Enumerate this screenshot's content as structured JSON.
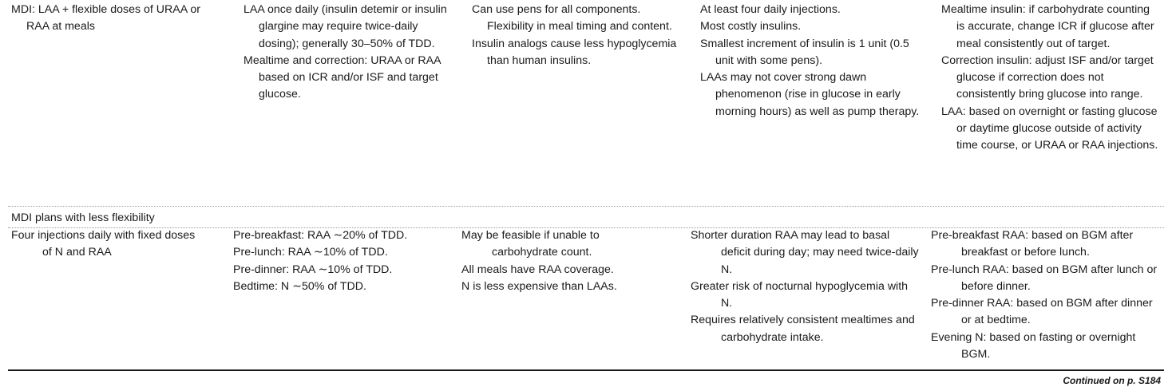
{
  "row1": {
    "plan": [
      "MDI: LAA + flexible doses of URAA or RAA at meals"
    ],
    "dosing": [
      "LAA once daily (insulin detemir or insulin glargine may require twice-daily dosing); generally 30–50% of TDD.",
      "Mealtime and correction: URAA or RAA based on ICR and/or ISF and target glucose."
    ],
    "advantages": [
      "Can use pens for all components. Flexibility in meal timing and content.",
      "Insulin analogs cause less hypoglycemia than human insulins."
    ],
    "disadvantages": [
      "At least four daily injections.",
      "Most costly insulins.",
      "Smallest increment of insulin is 1 unit (0.5 unit with some pens).",
      "LAAs may not cover strong dawn phenomenon (rise in glucose in early morning hours) as well as pump therapy."
    ],
    "adjusting": [
      "Mealtime insulin: if carbohydrate counting is accurate, change ICR if glucose after meal consistently out of target.",
      "Correction insulin: adjust ISF and/or target glucose if correction does not consistently bring glucose into range.",
      "LAA: based on overnight or fasting glucose or daytime glucose outside of activity time course, or URAA or RAA injections."
    ]
  },
  "section": {
    "label": "MDI plans with less flexibility"
  },
  "row2": {
    "plan": [
      "Four injections daily with fixed doses of N and RAA"
    ],
    "dosing": [
      "Pre-breakfast: RAA ∼20% of TDD.",
      "Pre-lunch: RAA ∼10% of TDD.",
      "Pre-dinner: RAA ∼10% of TDD.",
      "Bedtime: N ∼50% of TDD."
    ],
    "advantages": [
      "May be feasible if unable to carbohydrate count.",
      "All meals have RAA coverage.",
      "N is less expensive than LAAs."
    ],
    "disadvantages": [
      "Shorter duration RAA may lead to basal deficit during day; may need twice-daily N.",
      "Greater risk of nocturnal hypoglycemia with N.",
      "Requires relatively consistent mealtimes and carbohydrate intake."
    ],
    "adjusting": [
      "Pre-breakfast RAA: based on BGM after breakfast or before lunch.",
      "Pre-lunch RAA: based on BGM after lunch or before dinner.",
      "Pre-dinner RAA: based on BGM after dinner or at bedtime.",
      "Evening N: based on fasting or overnight BGM."
    ]
  },
  "footer": {
    "continued": "Continued on p. S184"
  }
}
